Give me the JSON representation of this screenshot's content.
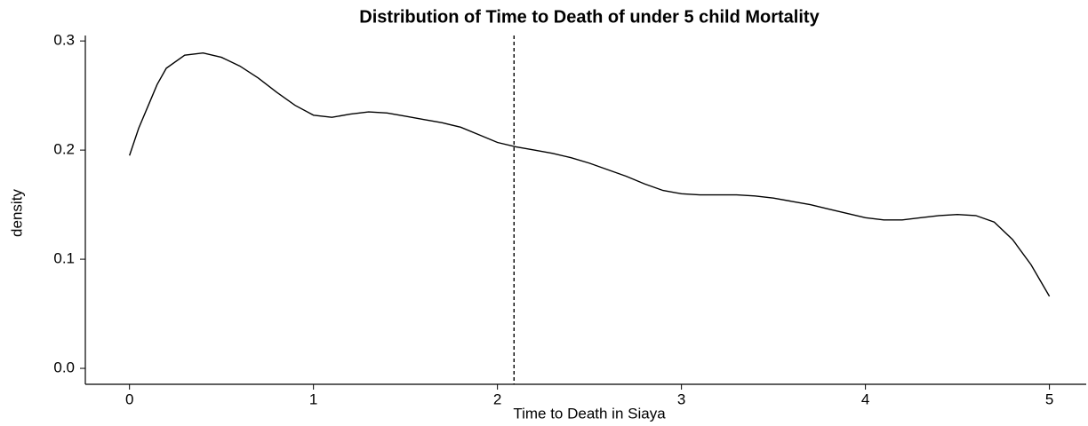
{
  "chart_data": {
    "type": "line",
    "title": "Distribution of Time to Death of under 5 child Mortality",
    "xlabel": "Time to Death in Siaya",
    "ylabel": "density",
    "x": [
      0,
      0.05,
      0.1,
      0.15,
      0.2,
      0.3,
      0.4,
      0.5,
      0.6,
      0.7,
      0.8,
      0.9,
      1.0,
      1.1,
      1.2,
      1.3,
      1.4,
      1.5,
      1.6,
      1.7,
      1.8,
      1.9,
      2.0,
      2.1,
      2.2,
      2.3,
      2.4,
      2.5,
      2.6,
      2.7,
      2.8,
      2.9,
      3.0,
      3.1,
      3.2,
      3.3,
      3.4,
      3.5,
      3.6,
      3.7,
      3.8,
      3.9,
      4.0,
      4.1,
      4.2,
      4.3,
      4.4,
      4.5,
      4.6,
      4.7,
      4.8,
      4.9,
      5.0
    ],
    "series": [
      {
        "name": "density",
        "color": "#000000",
        "values": [
          0.195,
          0.22,
          0.24,
          0.26,
          0.275,
          0.287,
          0.289,
          0.285,
          0.277,
          0.266,
          0.253,
          0.241,
          0.232,
          0.23,
          0.233,
          0.235,
          0.234,
          0.231,
          0.228,
          0.225,
          0.221,
          0.214,
          0.207,
          0.203,
          0.2,
          0.197,
          0.193,
          0.188,
          0.182,
          0.176,
          0.169,
          0.163,
          0.16,
          0.159,
          0.159,
          0.159,
          0.158,
          0.156,
          0.153,
          0.15,
          0.146,
          0.142,
          0.138,
          0.136,
          0.136,
          0.138,
          0.14,
          0.141,
          0.14,
          0.134,
          0.118,
          0.095,
          0.066
        ]
      }
    ],
    "vline": 2.09,
    "xlim": [
      -0.24,
      5.2
    ],
    "ylim": [
      -0.0146,
      0.305
    ],
    "xticks": [
      0,
      1,
      2,
      3,
      4,
      5
    ],
    "yticks": [
      {
        "value": 0,
        "label": "0.0"
      },
      0.1,
      0.2,
      0.3
    ]
  }
}
